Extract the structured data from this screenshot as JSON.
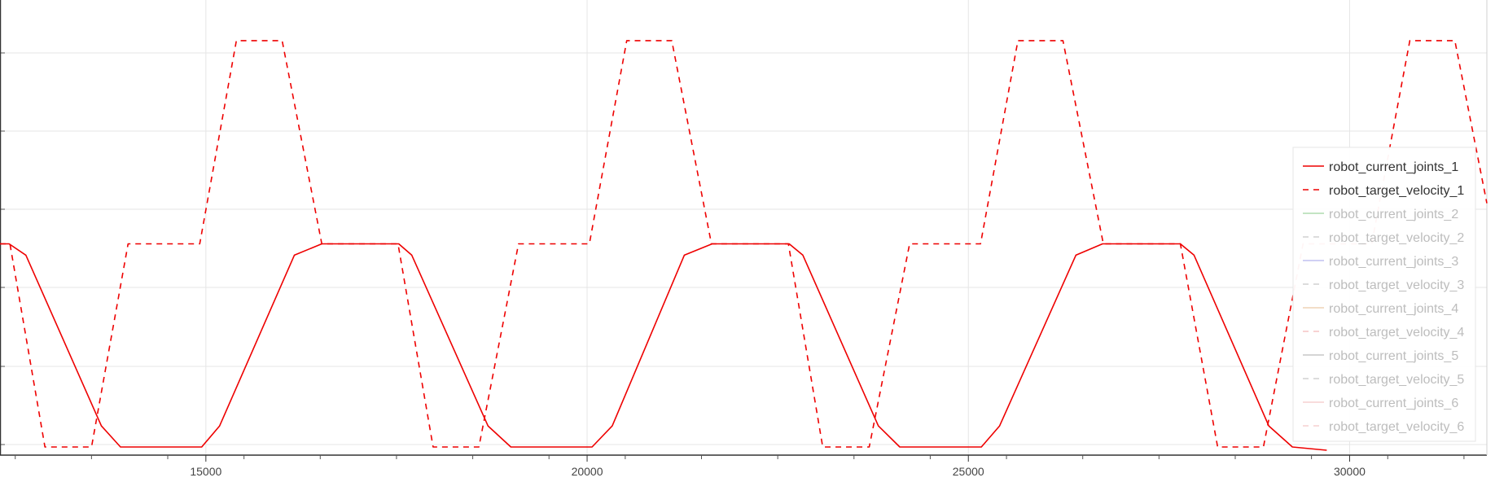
{
  "chart_data": {
    "type": "line",
    "xlim": [
      12300,
      31800
    ],
    "ylim": [
      -1.3,
      1.5
    ],
    "grid": true,
    "legend_position": "right",
    "x_ticks": [
      15000,
      20000,
      25000,
      30000
    ],
    "x_tick_labels": [
      "15000",
      "20000",
      "25000",
      "30000"
    ],
    "series": [
      {
        "name": "robot_current_joints_1",
        "color": "#ee0000",
        "dash": "solid",
        "active": true,
        "x": [
          12300,
          12420,
          12640,
          13630,
          13880,
          14945,
          15180,
          16160,
          16520,
          17530,
          17700,
          18700,
          19000,
          20065,
          20330,
          21275,
          21640,
          22650,
          22830,
          23820,
          24100,
          25170,
          25410,
          26410,
          26760,
          27780,
          27960,
          28940,
          29250,
          29700
        ],
        "y": [
          0,
          0,
          -0.07,
          -1.12,
          -1.25,
          -1.25,
          -1.12,
          -0.07,
          0,
          0,
          -0.07,
          -1.12,
          -1.25,
          -1.25,
          -1.12,
          -0.07,
          0,
          0,
          -0.07,
          -1.12,
          -1.25,
          -1.25,
          -1.12,
          -0.07,
          0,
          0,
          -0.07,
          -1.12,
          -1.25,
          -1.27
        ]
      },
      {
        "name": "robot_target_velocity_1",
        "color": "#ee0000",
        "dash": "dashed",
        "active": true,
        "x": [
          12300,
          12430,
          12890,
          13500,
          13980,
          14920,
          15400,
          16000,
          16520,
          17520,
          17980,
          18580,
          19100,
          20030,
          20520,
          21110,
          21630,
          22640,
          23090,
          23700,
          24230,
          25160,
          25650,
          26240,
          26770,
          27780,
          28270,
          28870,
          29390,
          30290,
          30790,
          31380,
          31800
        ],
        "y": [
          0,
          0,
          -1.25,
          -1.25,
          0,
          0,
          1.25,
          1.25,
          0,
          0,
          -1.25,
          -1.25,
          0,
          0,
          1.25,
          1.25,
          0,
          0,
          -1.25,
          -1.25,
          0,
          0,
          1.25,
          1.25,
          0,
          0,
          -1.25,
          -1.25,
          0,
          0,
          1.25,
          1.25,
          0.25
        ]
      },
      {
        "name": "robot_current_joints_2",
        "color": "#9fd49f",
        "dash": "solid",
        "active": false
      },
      {
        "name": "robot_target_velocity_2",
        "color": "#c6c6c6",
        "dash": "dashed",
        "active": false
      },
      {
        "name": "robot_current_joints_3",
        "color": "#b3b3ee",
        "dash": "solid",
        "active": false
      },
      {
        "name": "robot_target_velocity_3",
        "color": "#c6c6c6",
        "dash": "dashed",
        "active": false
      },
      {
        "name": "robot_current_joints_4",
        "color": "#ecc9a6",
        "dash": "solid",
        "active": false
      },
      {
        "name": "robot_target_velocity_4",
        "color": "#f4b8b8",
        "dash": "dashed",
        "active": false
      },
      {
        "name": "robot_current_joints_5",
        "color": "#bcbcbc",
        "dash": "solid",
        "active": false
      },
      {
        "name": "robot_target_velocity_5",
        "color": "#c6c6c6",
        "dash": "dashed",
        "active": false
      },
      {
        "name": "robot_current_joints_6",
        "color": "#f4c6c6",
        "dash": "solid",
        "active": false
      },
      {
        "name": "robot_target_velocity_6",
        "color": "#f4c6c6",
        "dash": "dashed",
        "active": false
      }
    ]
  }
}
